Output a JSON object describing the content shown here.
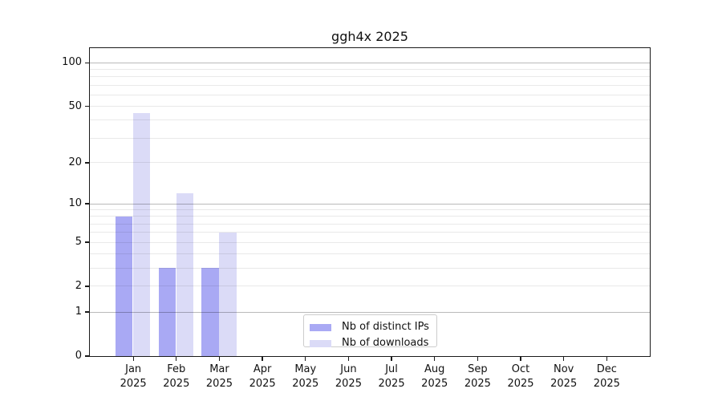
{
  "chart_data": {
    "type": "bar",
    "title": "ggh4x 2025",
    "months": [
      "Jan",
      "Feb",
      "Mar",
      "Apr",
      "May",
      "Jun",
      "Jul",
      "Aug",
      "Sep",
      "Oct",
      "Nov",
      "Dec"
    ],
    "year": "2025",
    "series": [
      {
        "name": "Nb of distinct IPs",
        "color": "#a9a9f4",
        "values": [
          8,
          3,
          3,
          0,
          0,
          0,
          0,
          0,
          0,
          0,
          0,
          0
        ]
      },
      {
        "name": "Nb of downloads",
        "color": "#dbdbf7",
        "values": [
          45,
          12,
          6,
          0,
          0,
          0,
          0,
          0,
          0,
          0,
          0,
          0
        ]
      }
    ],
    "yscale": "log1p",
    "ylim": [
      0,
      126.5
    ],
    "yticks": [
      0,
      1,
      2,
      5,
      10,
      20,
      50,
      100
    ],
    "ytick_labels": [
      "0",
      "1",
      "2",
      "5",
      "10",
      "20",
      "50",
      "100"
    ],
    "major_gridlines": [
      1,
      10,
      100
    ],
    "minor_gridlines": [
      2,
      3,
      4,
      5,
      6,
      7,
      8,
      9,
      20,
      30,
      40,
      50,
      60,
      70,
      80,
      90
    ],
    "grid": true,
    "legend_position": "lower center",
    "colors": {
      "distinct_ips_bar": "#a9a9f4",
      "downloads_bar": "#dbdbf7",
      "axis": "#1a1a1a",
      "minor_grid": "#e9e9e9",
      "major_grid": "#bababa",
      "background": "#ffffff"
    }
  }
}
